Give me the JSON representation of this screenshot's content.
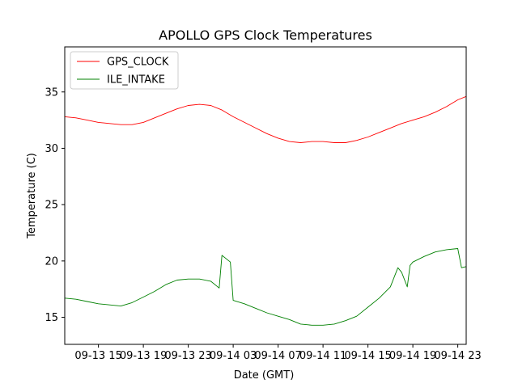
{
  "chart_data": {
    "type": "line",
    "title": "APOLLO GPS Clock Temperatures",
    "xlabel": "Date (GMT)",
    "ylabel": "Temperature (C)",
    "xlim": [
      "09-13 12:00",
      "09-14 23:45"
    ],
    "ylim": [
      12.6,
      39.0
    ],
    "grid": false,
    "legend_position": "top-left",
    "x_ticks": [
      {
        "label": "09-13 15",
        "time": "09-13 15:00"
      },
      {
        "label": "09-13 19",
        "time": "09-13 19:00"
      },
      {
        "label": "09-13 23",
        "time": "09-13 23:00"
      },
      {
        "label": "09-14 03",
        "time": "09-14 03:00"
      },
      {
        "label": "09-14 07",
        "time": "09-14 07:00"
      },
      {
        "label": "09-14 11",
        "time": "09-14 11:00"
      },
      {
        "label": "09-14 15",
        "time": "09-14 15:00"
      },
      {
        "label": "09-14 19",
        "time": "09-14 19:00"
      },
      {
        "label": "09-14 23",
        "time": "09-14 23:00"
      }
    ],
    "y_ticks": [
      15,
      20,
      25,
      30,
      35
    ],
    "series": [
      {
        "name": "GPS_CLOCK",
        "color": "#ff0000",
        "x": [
          "09-13 12:00",
          "09-13 13:00",
          "09-13 14:00",
          "09-13 15:00",
          "09-13 16:00",
          "09-13 17:00",
          "09-13 18:00",
          "09-13 19:00",
          "09-13 20:00",
          "09-13 21:00",
          "09-13 22:00",
          "09-13 23:00",
          "09-14 00:00",
          "09-14 01:00",
          "09-14 02:00",
          "09-14 03:00",
          "09-14 04:00",
          "09-14 05:00",
          "09-14 06:00",
          "09-14 07:00",
          "09-14 08:00",
          "09-14 09:00",
          "09-14 10:00",
          "09-14 11:00",
          "09-14 12:00",
          "09-14 13:00",
          "09-14 14:00",
          "09-14 15:00",
          "09-14 16:00",
          "09-14 17:00",
          "09-14 18:00",
          "09-14 19:00",
          "09-14 20:00",
          "09-14 21:00",
          "09-14 22:00",
          "09-14 23:00",
          "09-14 23:45"
        ],
        "values": [
          32.8,
          32.7,
          32.5,
          32.3,
          32.2,
          32.1,
          32.1,
          32.3,
          32.7,
          33.1,
          33.5,
          33.8,
          33.9,
          33.8,
          33.4,
          32.8,
          32.3,
          31.8,
          31.3,
          30.9,
          30.6,
          30.5,
          30.6,
          30.6,
          30.5,
          30.5,
          30.7,
          31.0,
          31.4,
          31.8,
          32.2,
          32.5,
          32.8,
          33.2,
          33.7,
          34.3,
          34.6
        ]
      },
      {
        "name": "ILE_INTAKE",
        "color": "#008000",
        "x": [
          "09-13 12:00",
          "09-13 13:00",
          "09-13 14:00",
          "09-13 15:00",
          "09-13 16:00",
          "09-13 17:00",
          "09-13 18:00",
          "09-13 19:00",
          "09-13 20:00",
          "09-13 21:00",
          "09-13 22:00",
          "09-13 23:00",
          "09-14 00:00",
          "09-14 01:00",
          "09-14 01:45",
          "09-14 02:00",
          "09-14 02:45",
          "09-14 03:00",
          "09-14 04:00",
          "09-14 05:00",
          "09-14 06:00",
          "09-14 07:00",
          "09-14 08:00",
          "09-14 09:00",
          "09-14 10:00",
          "09-14 11:00",
          "09-14 12:00",
          "09-14 13:00",
          "09-14 14:00",
          "09-14 15:00",
          "09-14 16:00",
          "09-14 17:00",
          "09-14 17:40",
          "09-14 18:00",
          "09-14 18:30",
          "09-14 18:45",
          "09-14 19:00",
          "09-14 20:00",
          "09-14 21:00",
          "09-14 22:00",
          "09-14 23:00",
          "09-14 23:20",
          "09-14 23:45"
        ],
        "values": [
          16.7,
          16.6,
          16.4,
          16.2,
          16.1,
          16.0,
          16.3,
          16.8,
          17.3,
          17.9,
          18.3,
          18.4,
          18.4,
          18.2,
          17.6,
          20.5,
          19.9,
          16.5,
          16.2,
          15.8,
          15.4,
          15.1,
          14.8,
          14.4,
          14.3,
          14.3,
          14.4,
          14.7,
          15.1,
          15.9,
          16.7,
          17.7,
          19.4,
          19.0,
          17.7,
          19.6,
          19.9,
          20.4,
          20.8,
          21.0,
          21.1,
          19.4,
          19.5
        ]
      }
    ]
  }
}
